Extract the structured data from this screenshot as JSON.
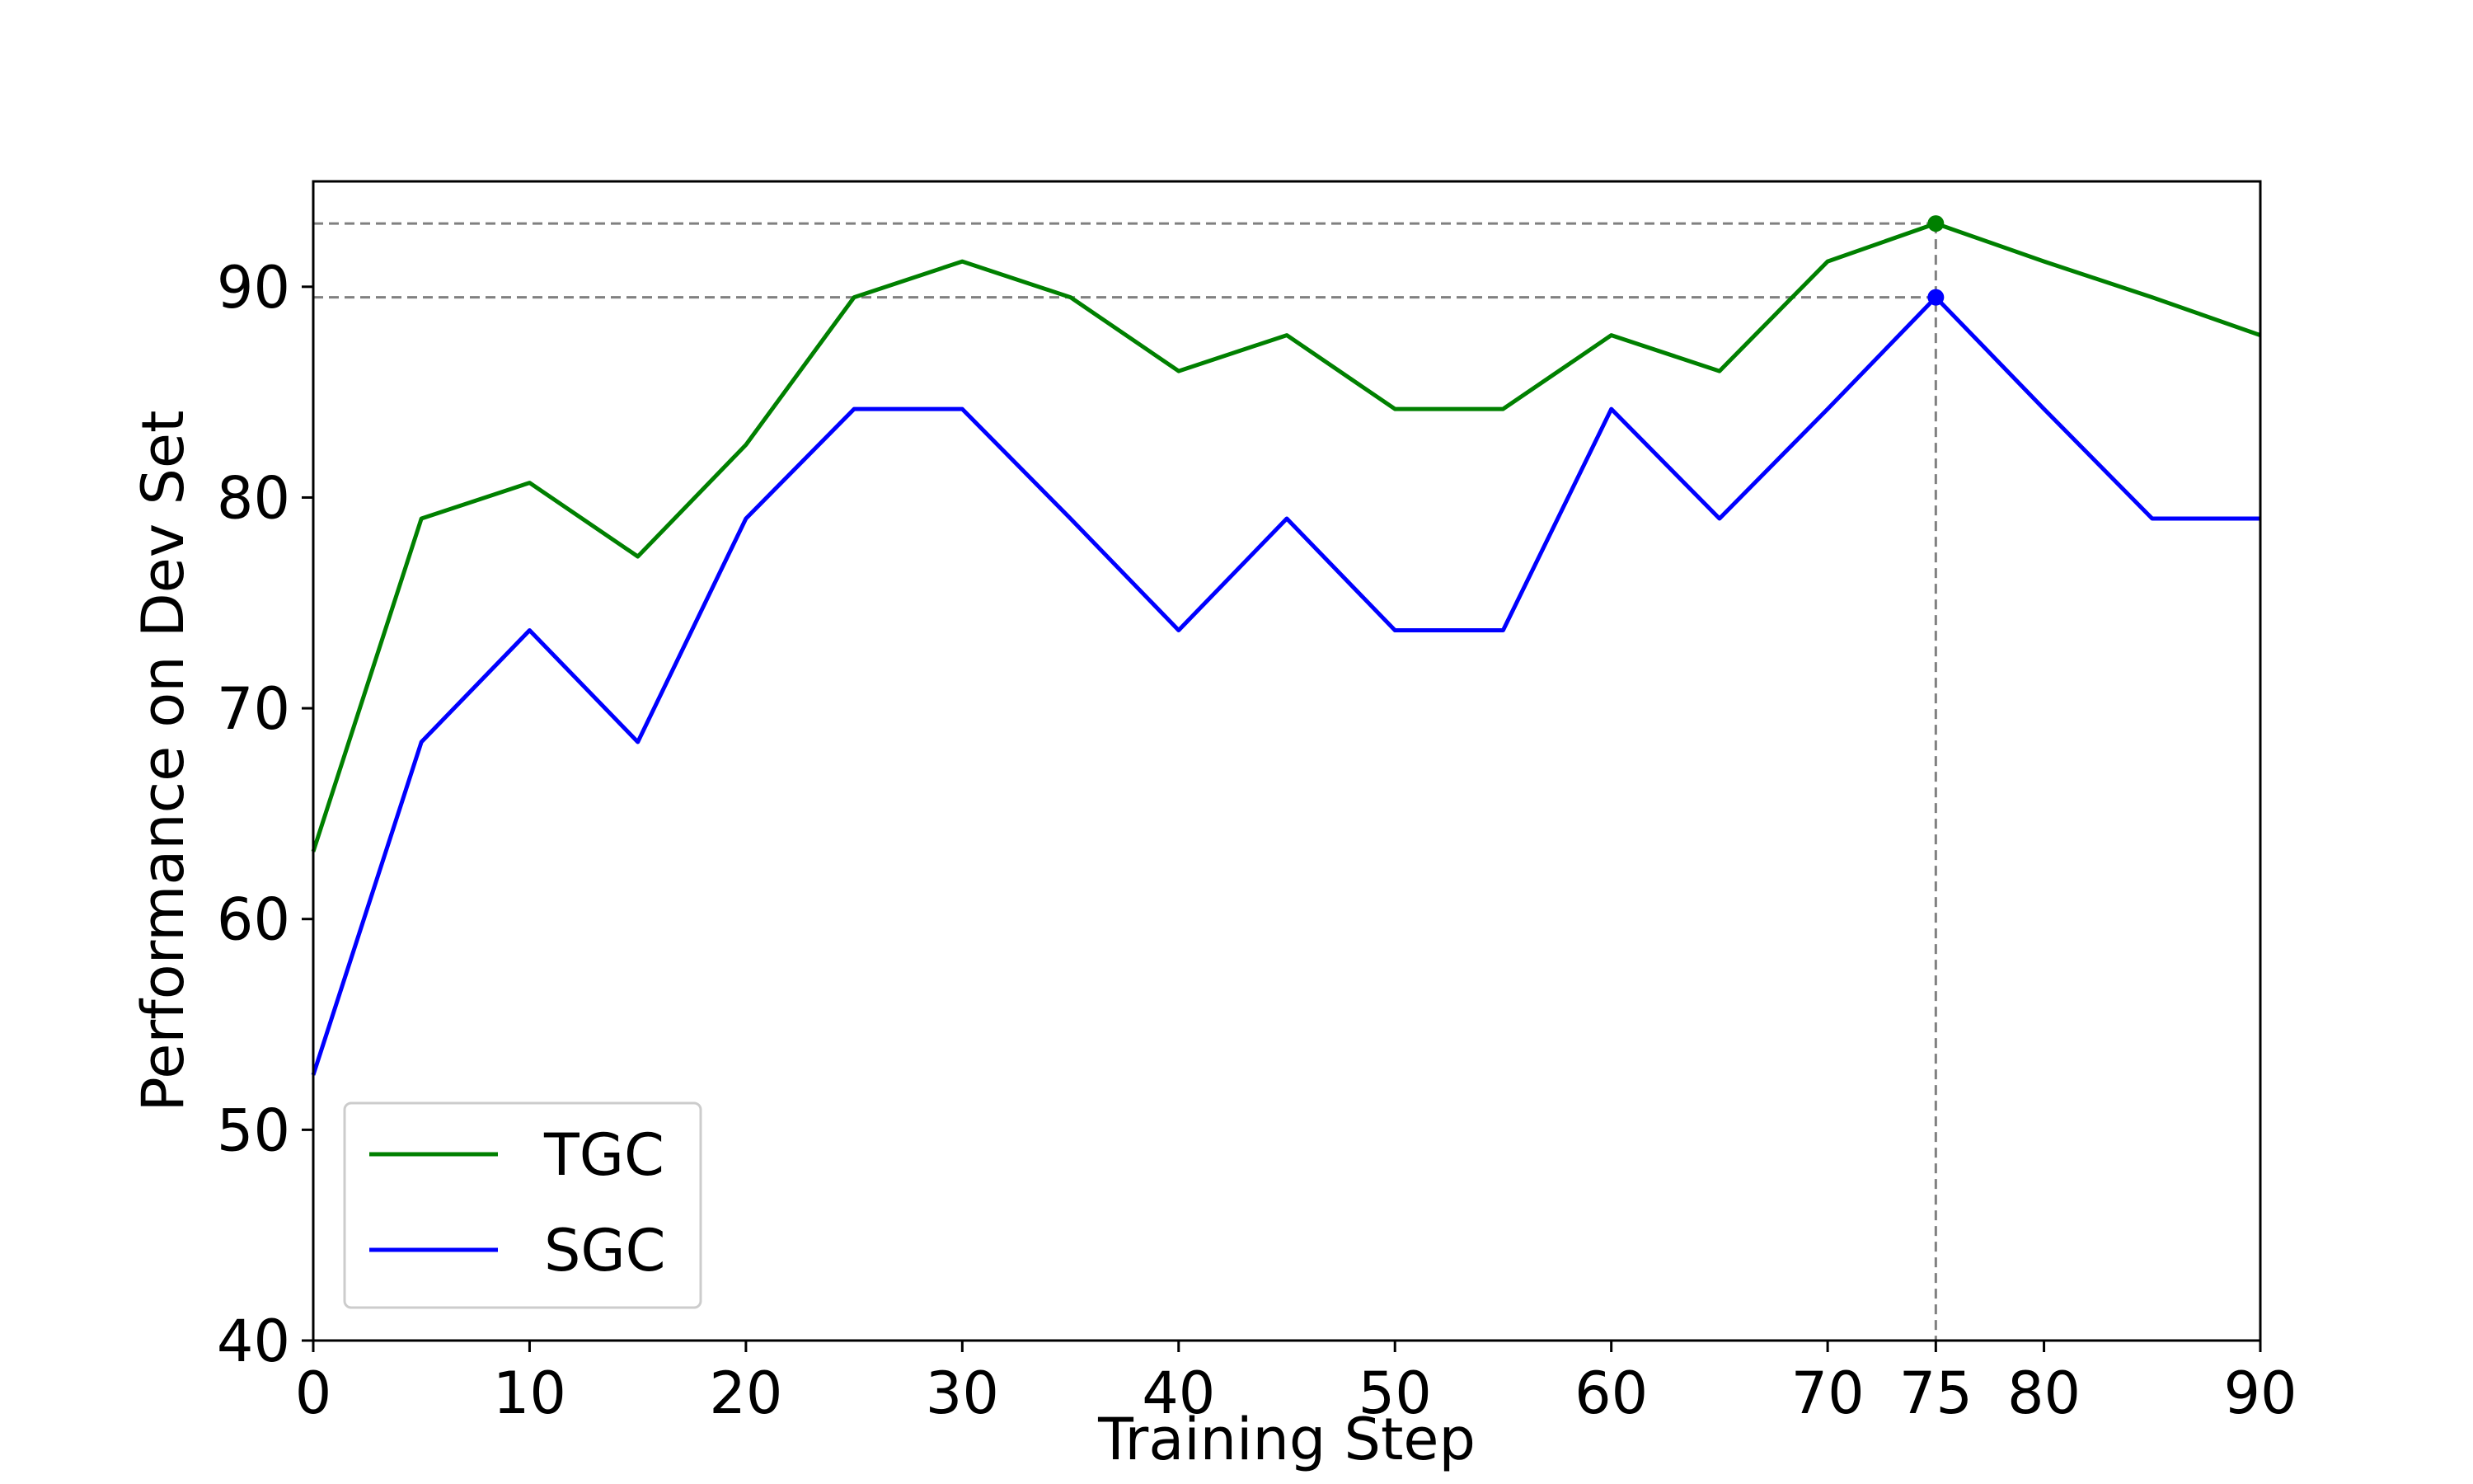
{
  "chart_data": {
    "type": "line",
    "title": "",
    "xlabel": "Training Step",
    "ylabel": "Performance on Dev Set",
    "xlim": [
      0,
      90
    ],
    "ylim": [
      40,
      95
    ],
    "xticks": [
      0,
      10,
      20,
      30,
      40,
      50,
      60,
      70,
      75,
      80,
      90
    ],
    "yticks": [
      40,
      50,
      60,
      70,
      80,
      90
    ],
    "grid": false,
    "legend_position": "lower-left",
    "x": [
      0,
      5,
      10,
      15,
      20,
      25,
      30,
      35,
      40,
      45,
      50,
      55,
      60,
      65,
      70,
      75,
      80,
      85,
      90
    ],
    "series": [
      {
        "name": "TGC",
        "color": "#008000",
        "values": [
          63.2,
          79.0,
          80.7,
          77.2,
          82.5,
          89.5,
          91.2,
          89.5,
          86.0,
          87.7,
          84.2,
          84.2,
          87.7,
          86.0,
          91.2,
          93.0,
          91.2,
          89.5,
          87.7
        ]
      },
      {
        "name": "SGC",
        "color": "#0000ff",
        "values": [
          52.6,
          68.4,
          73.7,
          68.4,
          79.0,
          84.2,
          84.2,
          79.0,
          73.7,
          79.0,
          73.7,
          73.7,
          84.2,
          79.0,
          84.2,
          89.5,
          84.2,
          79.0,
          79.0
        ]
      }
    ],
    "annotations": [
      {
        "series": "TGC",
        "x": 75,
        "y": 93.0
      },
      {
        "series": "SGC",
        "x": 75,
        "y": 89.5
      }
    ],
    "reference_color": "#808080"
  }
}
